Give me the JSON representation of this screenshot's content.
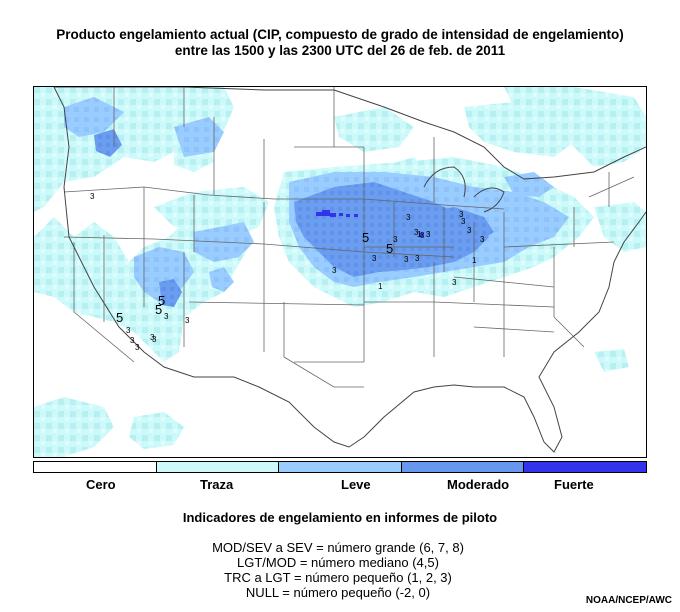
{
  "title": {
    "line1": "Producto engelamiento actual (CIP, compuesto de grado de intensidad de engelamiento)",
    "line2": "entre las 1500 y las 2300 UTC del 26 de feb. de 2011"
  },
  "legend": {
    "items": [
      {
        "label": "Cero",
        "color": "#ffffff"
      },
      {
        "label": "Traza",
        "color": "#ccfafa"
      },
      {
        "label": "Leve",
        "color": "#99ccff"
      },
      {
        "label": "Moderado",
        "color": "#6699ee"
      },
      {
        "label": "Fuerte",
        "color": "#3333ee"
      }
    ]
  },
  "pirep": {
    "title": "Indicadores de engelamiento en informes de piloto",
    "lines": [
      "MOD/SEV a SEV = número grande (6, 7, 8)",
      "LGT/MOD = número mediano (4,5)",
      "TRC a LGT = número pequeño (1, 2, 3)",
      "NULL = número pequeño (-2, 0)"
    ]
  },
  "map_markers": [
    "3",
    "5",
    "3",
    "3",
    "5",
    "5",
    "3",
    "3",
    "3",
    "3",
    "3",
    "3",
    "3",
    "3",
    "5",
    "3",
    "3",
    "3",
    "3",
    "5",
    "3",
    "3",
    "1",
    "3",
    "3",
    "3",
    "3",
    "1",
    "3",
    "1"
  ],
  "credit": "NOAA/NCEP/AWC"
}
